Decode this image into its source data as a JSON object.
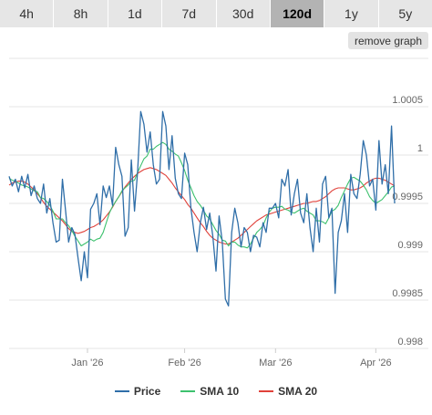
{
  "tabs": [
    {
      "label": "4h",
      "active": false
    },
    {
      "label": "8h",
      "active": false
    },
    {
      "label": "1d",
      "active": false
    },
    {
      "label": "7d",
      "active": false
    },
    {
      "label": "30d",
      "active": false
    },
    {
      "label": "120d",
      "active": true
    },
    {
      "label": "1y",
      "active": false
    },
    {
      "label": "5y",
      "active": false
    }
  ],
  "remove_graph_label": "remove graph",
  "colors": {
    "price": "#2f6ea8",
    "sma10": "#3dc16e",
    "sma20": "#e0413a",
    "grid": "#e6e6e6"
  },
  "chart_data": {
    "type": "line",
    "title": "",
    "xlabel": "",
    "ylabel": "",
    "y_ticks": [
      {
        "value": 0.998,
        "label": "0.998"
      },
      {
        "value": 0.9985,
        "label": "0.9985"
      },
      {
        "value": 0.999,
        "label": "0.999"
      },
      {
        "value": 0.9995,
        "label": "0.9995"
      },
      {
        "value": 1.0,
        "label": "1"
      },
      {
        "value": 1.0005,
        "label": "1.0005"
      }
    ],
    "x_ticks": [
      {
        "index": 25,
        "label": "Jan '26"
      },
      {
        "index": 56,
        "label": "Feb '26"
      },
      {
        "index": 85,
        "label": "Mar '26"
      },
      {
        "index": 117,
        "label": "Apr '26"
      }
    ],
    "ylim": [
      0.998,
      1.001
    ],
    "xlim": [
      0,
      123
    ],
    "grid": true,
    "legend_position": "bottom",
    "series": [
      {
        "name": "Price",
        "color": "#2f6ea8",
        "values": [
          0.99978,
          0.99968,
          0.99975,
          0.99962,
          0.99978,
          0.99966,
          0.9998,
          0.99958,
          0.99968,
          0.99955,
          0.9995,
          0.9997,
          0.9994,
          0.99955,
          0.9993,
          0.9991,
          0.99912,
          0.99975,
          0.99943,
          0.9991,
          0.99925,
          0.99918,
          0.99893,
          0.9987,
          0.999,
          0.99873,
          0.99944,
          0.9995,
          0.9996,
          0.99928,
          0.99968,
          0.99956,
          0.99968,
          0.99948,
          1.00008,
          0.9999,
          0.99978,
          0.99916,
          0.99925,
          0.99995,
          0.99942,
          0.99983,
          1.00045,
          1.00032,
          1.00003,
          1.00024,
          0.9999,
          0.9997,
          0.99975,
          1.00045,
          1.0003,
          0.99985,
          1.0002,
          0.99976,
          0.9996,
          0.99955,
          1.00002,
          0.9999,
          0.99945,
          0.9992,
          0.999,
          0.9993,
          0.99946,
          0.99923,
          0.9994,
          0.99916,
          0.9988,
          0.99937,
          0.9991,
          0.99851,
          0.99844,
          0.9992,
          0.99945,
          0.9993,
          0.99905,
          0.99925,
          0.9992,
          0.999,
          0.99917,
          0.99915,
          0.99905,
          0.9993,
          0.9992,
          0.99945,
          0.99945,
          0.9995,
          0.99935,
          0.99975,
          0.99968,
          0.99985,
          0.99938,
          0.9996,
          0.99975,
          0.9994,
          0.9993,
          0.9996,
          0.99925,
          0.999,
          0.99945,
          0.9991,
          0.9997,
          0.99978,
          0.99935,
          0.99945,
          0.99857,
          0.9992,
          0.99932,
          0.9996,
          0.9992,
          0.9998,
          0.9996,
          0.99955,
          0.9998,
          1.00015,
          1.0,
          0.99968,
          0.99975,
          0.99943,
          1.00015,
          0.9997,
          0.9999,
          0.9996,
          1.0003,
          0.9995
        ]
      },
      {
        "name": "SMA 10",
        "color": "#3dc16e",
        "values": [
          0.99976,
          0.99974,
          0.99973,
          0.99971,
          0.99969,
          0.99968,
          0.99967,
          0.99965,
          0.99963,
          0.99962,
          0.99956,
          0.99955,
          0.99952,
          0.99948,
          0.99942,
          0.99934,
          0.99934,
          0.99934,
          0.9993,
          0.99927,
          0.99922,
          0.99916,
          0.99911,
          0.99906,
          0.99908,
          0.9991,
          0.99913,
          0.99911,
          0.99913,
          0.99914,
          0.9992,
          0.9993,
          0.9994,
          0.99947,
          0.99952,
          0.99957,
          0.99963,
          0.99966,
          0.99969,
          0.99973,
          0.99974,
          0.99982,
          0.99989,
          0.99996,
          0.99999,
          1.00006,
          1.00006,
          1.00009,
          1.00011,
          1.00013,
          1.00011,
          1.00006,
          1.00004,
          1.00001,
          0.99999,
          0.99992,
          0.99984,
          0.99974,
          0.99966,
          0.99958,
          0.99952,
          0.99948,
          0.99943,
          0.99937,
          0.99934,
          0.99928,
          0.99922,
          0.99918,
          0.99912,
          0.99911,
          0.99906,
          0.9991,
          0.9991,
          0.99907,
          0.99905,
          0.99905,
          0.99904,
          0.99908,
          0.99914,
          0.9992,
          0.99923,
          0.99927,
          0.99935,
          0.99941,
          0.99945,
          0.99946,
          0.99946,
          0.99947,
          0.99944,
          0.99943,
          0.99941,
          0.9994,
          0.99942,
          0.99944,
          0.99945,
          0.99942,
          0.9994,
          0.99938,
          0.99932,
          0.99932,
          0.99931,
          0.99929,
          0.99935,
          0.99942,
          0.99944,
          0.99948,
          0.99956,
          0.99963,
          0.9997,
          0.99976,
          0.99977,
          0.99975,
          0.99973,
          0.99969,
          0.99964,
          0.99957,
          0.99953,
          0.9995,
          0.99952,
          0.99954,
          0.99958,
          0.99962,
          0.99967,
          0.99968
        ]
      },
      {
        "name": "SMA 20",
        "color": "#e0413a",
        "values": [
          0.99969,
          0.99971,
          0.99972,
          0.99973,
          0.99973,
          0.99972,
          0.9997,
          0.99967,
          0.99964,
          0.9996,
          0.99956,
          0.99951,
          0.99947,
          0.99944,
          0.99941,
          0.99938,
          0.99935,
          0.99932,
          0.99928,
          0.99924,
          0.99921,
          0.9992,
          0.99919,
          0.9992,
          0.99921,
          0.99923,
          0.99925,
          0.99926,
          0.99928,
          0.9993,
          0.99933,
          0.99937,
          0.99941,
          0.99946,
          0.99952,
          0.99957,
          0.99962,
          0.99967,
          0.99971,
          0.99975,
          0.99978,
          0.99981,
          0.99983,
          0.99985,
          0.99986,
          0.99987,
          0.99986,
          0.99985,
          0.99983,
          0.99981,
          0.99979,
          0.99975,
          0.99971,
          0.99966,
          0.99962,
          0.99958,
          0.99954,
          0.99949,
          0.99945,
          0.9994,
          0.99935,
          0.9993,
          0.99926,
          0.99921,
          0.99917,
          0.99914,
          0.99912,
          0.9991,
          0.99909,
          0.99908,
          0.99908,
          0.9991,
          0.99912,
          0.99914,
          0.99917,
          0.9992,
          0.99923,
          0.99926,
          0.99929,
          0.99932,
          0.99934,
          0.99936,
          0.99938,
          0.99939,
          0.9994,
          0.99941,
          0.99942,
          0.99943,
          0.99944,
          0.99945,
          0.99946,
          0.99947,
          0.99948,
          0.99949,
          0.9995,
          0.9995,
          0.99951,
          0.99952,
          0.99952,
          0.99953,
          0.99955,
          0.99957,
          0.9996,
          0.99963,
          0.99965,
          0.99966,
          0.99966,
          0.99966,
          0.99965,
          0.99964,
          0.99964,
          0.99965,
          0.99966,
          0.99968,
          0.99971,
          0.99973,
          0.99975,
          0.99976,
          0.99976,
          0.99975,
          0.99974,
          0.99972,
          0.9997,
          0.99968
        ]
      }
    ]
  }
}
